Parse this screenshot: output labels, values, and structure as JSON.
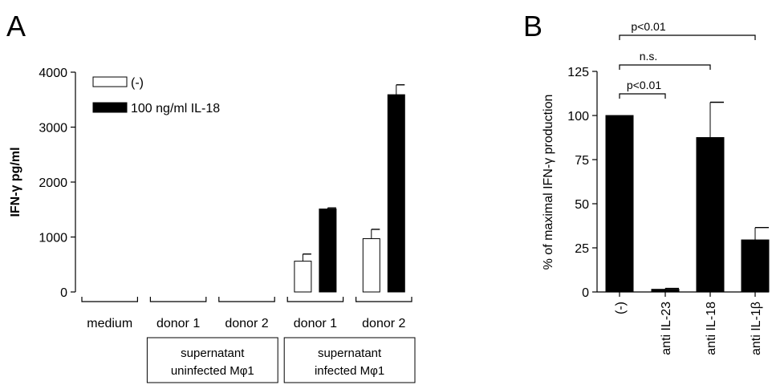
{
  "chart_data": [
    {
      "panel": "A",
      "type": "bar",
      "ylabel": "IFN-γ pg/ml",
      "ylim": [
        0,
        4000
      ],
      "yticks": [
        0,
        1000,
        2000,
        3000,
        4000
      ],
      "categories": [
        "medium",
        "donor 1",
        "donor 2",
        "donor 1",
        "donor 2"
      ],
      "groups": [
        {
          "label": "supernatant uninfected Mφ1",
          "categories": [
            1,
            2
          ]
        },
        {
          "label": "supernatant infected Mφ1",
          "categories": [
            3,
            4
          ]
        }
      ],
      "series": [
        {
          "name": "(-)",
          "color": "#ffffff",
          "values": [
            0,
            0,
            0,
            560,
            970
          ],
          "errors": [
            0,
            0,
            0,
            130,
            170
          ]
        },
        {
          "name": "100 ng/ml IL-18",
          "color": "#000000",
          "values": [
            0,
            0,
            0,
            1510,
            3590
          ],
          "errors": [
            0,
            0,
            0,
            20,
            180
          ]
        }
      ],
      "legend": "top-left"
    },
    {
      "panel": "B",
      "type": "bar",
      "ylabel": "% of maximal IFN-γ production",
      "ylim": [
        0,
        125
      ],
      "yticks": [
        0,
        25,
        50,
        75,
        100,
        125
      ],
      "categories": [
        "(-)",
        "anti IL-23",
        "anti IL-18",
        "anti IL-1β"
      ],
      "series": [
        {
          "color": "#000000",
          "values": [
            100,
            1.5,
            87.5,
            29.5
          ],
          "errors": [
            0,
            0.5,
            20,
            7
          ]
        }
      ],
      "annotations": [
        {
          "text": "p<0.01",
          "from": 0,
          "to": 3
        },
        {
          "text": "n.s.",
          "from": 0,
          "to": 2
        },
        {
          "text": "p<0.01",
          "from": 0,
          "to": 1
        }
      ]
    }
  ]
}
